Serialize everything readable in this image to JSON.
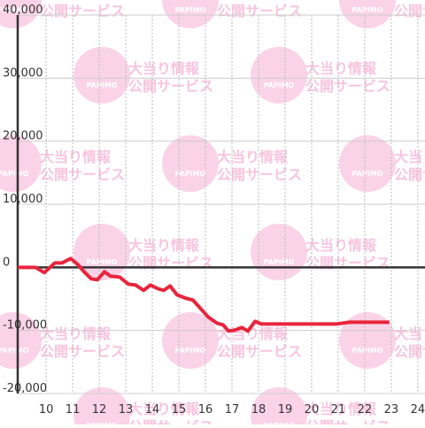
{
  "chart_data": {
    "type": "line",
    "x": [
      8.93,
      9.6,
      9.93,
      10.33,
      10.6,
      10.93,
      11.2,
      11.43,
      11.7,
      11.93,
      12.2,
      12.43,
      12.77,
      13.1,
      13.37,
      13.67,
      13.93,
      14.2,
      14.43,
      14.67,
      14.93,
      15.27,
      15.53,
      15.77,
      16.1,
      16.43,
      16.67,
      16.87,
      17.1,
      17.37,
      17.6,
      17.87,
      18.1,
      20.93,
      21.43,
      22.93
    ],
    "series": [
      {
        "color": "#e8253d",
        "values": [
          0,
          0,
          -840,
          700,
          700,
          1400,
          420,
          -700,
          -1820,
          -1960,
          -700,
          -1400,
          -1540,
          -2660,
          -2800,
          -3650,
          -2800,
          -3370,
          -3650,
          -2950,
          -4350,
          -4910,
          -5190,
          -6310,
          -7850,
          -8840,
          -9120,
          -10100,
          -9960,
          -9540,
          -10100,
          -8560,
          -8980,
          -8980,
          -8700,
          -8700
        ]
      }
    ],
    "xlim": [
      8.93,
      24.27
    ],
    "xticks": [
      10,
      11,
      12,
      13,
      14,
      15,
      16,
      17,
      18,
      19,
      20,
      21,
      22,
      23,
      24
    ],
    "ylim": [
      -20000,
      40000
    ],
    "yticks": [
      {
        "value": -20000,
        "label": "-20,000"
      },
      {
        "value": -10000,
        "label": "-10,000"
      },
      0,
      {
        "value": 10000,
        "label": "10,000"
      },
      {
        "value": 20000,
        "label": "20,000"
      },
      {
        "value": 30000,
        "label": "30,000"
      },
      {
        "value": 40000,
        "label": "40,000"
      }
    ],
    "grid": true
  },
  "watermark": {
    "logo": "PAPIMO",
    "line1": "大当り情報",
    "line2": "公開サービス"
  }
}
